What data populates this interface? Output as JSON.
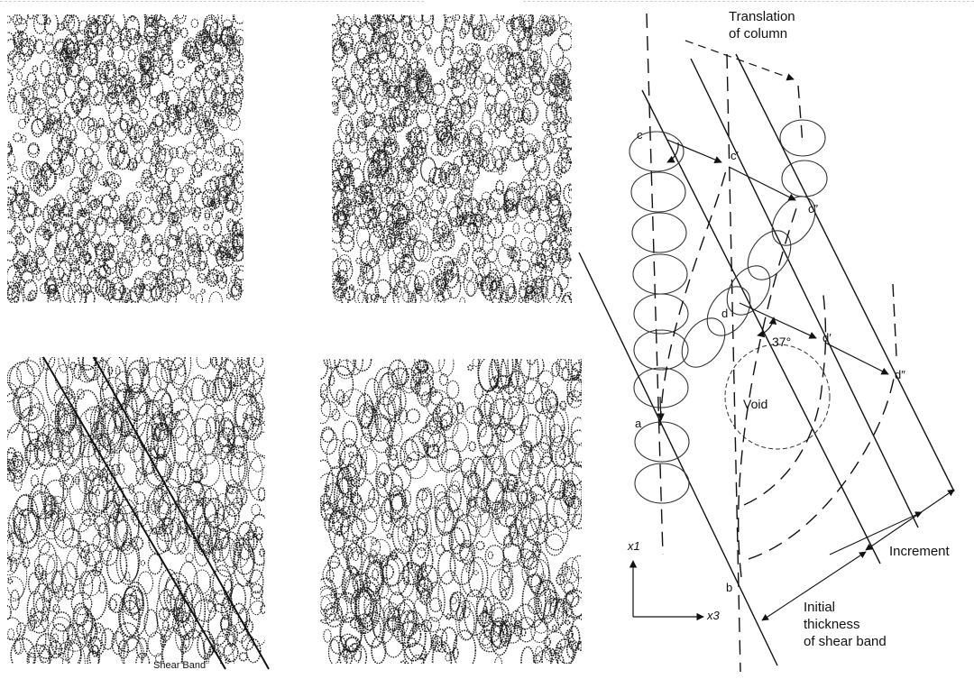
{
  "micrographs": {
    "shear_band_label": "Shear Band"
  },
  "diagram": {
    "translation_label": "Translation\nof column",
    "angle_label": "37°",
    "void_label": "Void",
    "increment_label": "Increment",
    "initial_thickness_label": "Initial\nthickness\nof shear band",
    "axis_x1": "x1",
    "axis_x3": "x3",
    "points": {
      "c": "c",
      "c1": "c′",
      "c2": "c″",
      "d": "d",
      "d1": "d′",
      "d2": "d″",
      "a": "a",
      "b": "b"
    }
  },
  "colors": {
    "ink": "#111111",
    "paper": "#ffffff",
    "faint": "#cfcfcf"
  }
}
